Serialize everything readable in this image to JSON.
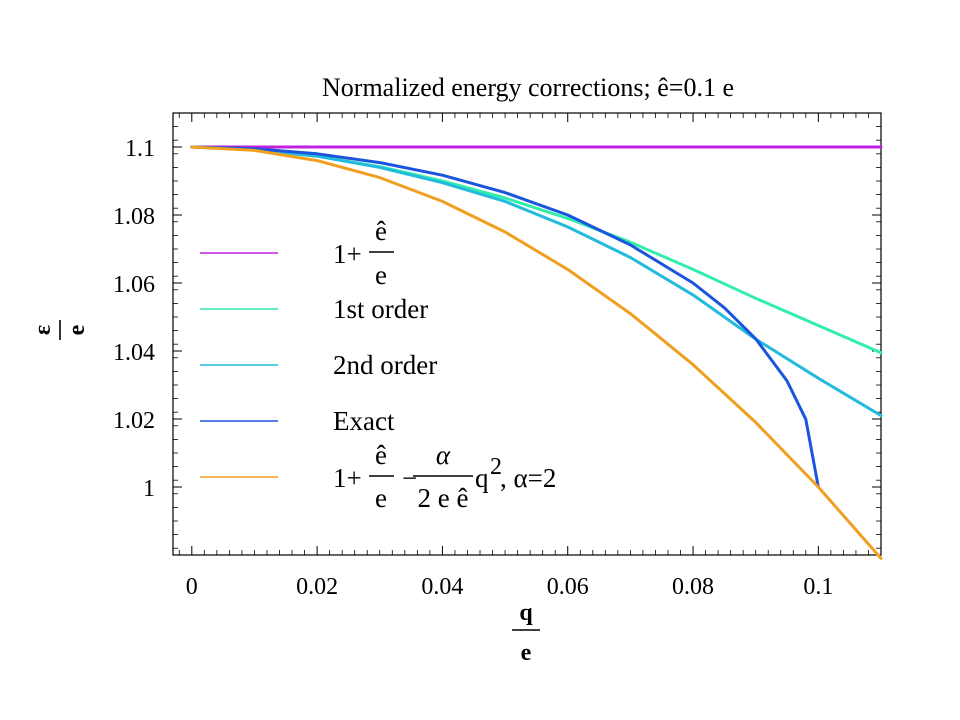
{
  "chart_data": {
    "type": "line",
    "title": "Normalized energy corrections; ê=0.1 e",
    "xlabel": {
      "numerator": "q",
      "denominator": "e"
    },
    "ylabel": {
      "numerator": "ε",
      "denominator": "e"
    },
    "xlim": [
      -0.003,
      0.11
    ],
    "ylim": [
      0.98,
      1.11
    ],
    "xticks": [
      "0",
      "0.02",
      "0.04",
      "0.06",
      "0.08",
      "0.1"
    ],
    "xtick_values": [
      0,
      0.02,
      0.04,
      0.06,
      0.08,
      0.1
    ],
    "yticks": [
      "1",
      "1.02",
      "1.04",
      "1.06",
      "1.08",
      "1.1"
    ],
    "ytick_values": [
      1,
      1.02,
      1.04,
      1.06,
      1.08,
      1.1
    ],
    "legend": {
      "placement": "center-left",
      "entries": [
        {
          "color": "#c020e0",
          "parts": {
            "lead": "1+",
            "num": "ê",
            "den": "e"
          }
        },
        {
          "color": "#33eeaa",
          "text": "1st order"
        },
        {
          "color": "#22bbdd",
          "text": "2nd order"
        },
        {
          "color": "#1a55dd",
          "text": "Exact"
        },
        {
          "color": "#f0a020",
          "parts": {
            "lead": "1+",
            "num": "ê",
            "den": "e",
            "minus": "−",
            "num2": "α",
            "den2": "2 e ê",
            "tail": "q",
            "sup": "2",
            "alpha": ", α=2"
          }
        }
      ]
    },
    "series": [
      {
        "color": "#c020e0",
        "points": [
          [
            0,
            1.1
          ],
          [
            0.11,
            1.1
          ]
        ]
      },
      {
        "color": "#33eeaa",
        "points": [
          [
            0,
            1.1
          ],
          [
            0.01,
            1.0993
          ],
          [
            0.02,
            1.0973
          ],
          [
            0.03,
            1.0942
          ],
          [
            0.04,
            1.09
          ],
          [
            0.05,
            1.085
          ],
          [
            0.06,
            1.079
          ],
          [
            0.07,
            1.072
          ],
          [
            0.08,
            1.064
          ],
          [
            0.09,
            1.0555
          ],
          [
            0.1,
            1.0475
          ],
          [
            0.11,
            1.0395
          ]
        ]
      },
      {
        "color": "#22bbdd",
        "points": [
          [
            0,
            1.1
          ],
          [
            0.01,
            1.0993
          ],
          [
            0.02,
            1.0973
          ],
          [
            0.03,
            1.094
          ],
          [
            0.04,
            1.0895
          ],
          [
            0.05,
            1.084
          ],
          [
            0.06,
            1.0765
          ],
          [
            0.07,
            1.0675
          ],
          [
            0.08,
            1.0565
          ],
          [
            0.09,
            1.0435
          ],
          [
            0.1,
            1.032
          ],
          [
            0.11,
            1.021
          ]
        ]
      },
      {
        "color": "#1a55dd",
        "points": [
          [
            0,
            1.1
          ],
          [
            0.01,
            1.0995
          ],
          [
            0.02,
            1.098
          ],
          [
            0.03,
            1.0954
          ],
          [
            0.04,
            1.0917
          ],
          [
            0.05,
            1.0866
          ],
          [
            0.06,
            1.08
          ],
          [
            0.07,
            1.0712
          ],
          [
            0.08,
            1.06
          ],
          [
            0.085,
            1.0527
          ],
          [
            0.09,
            1.0436
          ],
          [
            0.095,
            1.0312
          ],
          [
            0.098,
            1.0199
          ],
          [
            0.1,
            1.0
          ]
        ]
      },
      {
        "color": "#f0a020",
        "points": [
          [
            0,
            1.1
          ],
          [
            0.01,
            1.099
          ],
          [
            0.02,
            1.096
          ],
          [
            0.03,
            1.091
          ],
          [
            0.04,
            1.084
          ],
          [
            0.05,
            1.075
          ],
          [
            0.06,
            1.064
          ],
          [
            0.07,
            1.051
          ],
          [
            0.08,
            1.036
          ],
          [
            0.09,
            1.019
          ],
          [
            0.1,
            1.0
          ],
          [
            0.11,
            0.979
          ]
        ]
      }
    ]
  }
}
